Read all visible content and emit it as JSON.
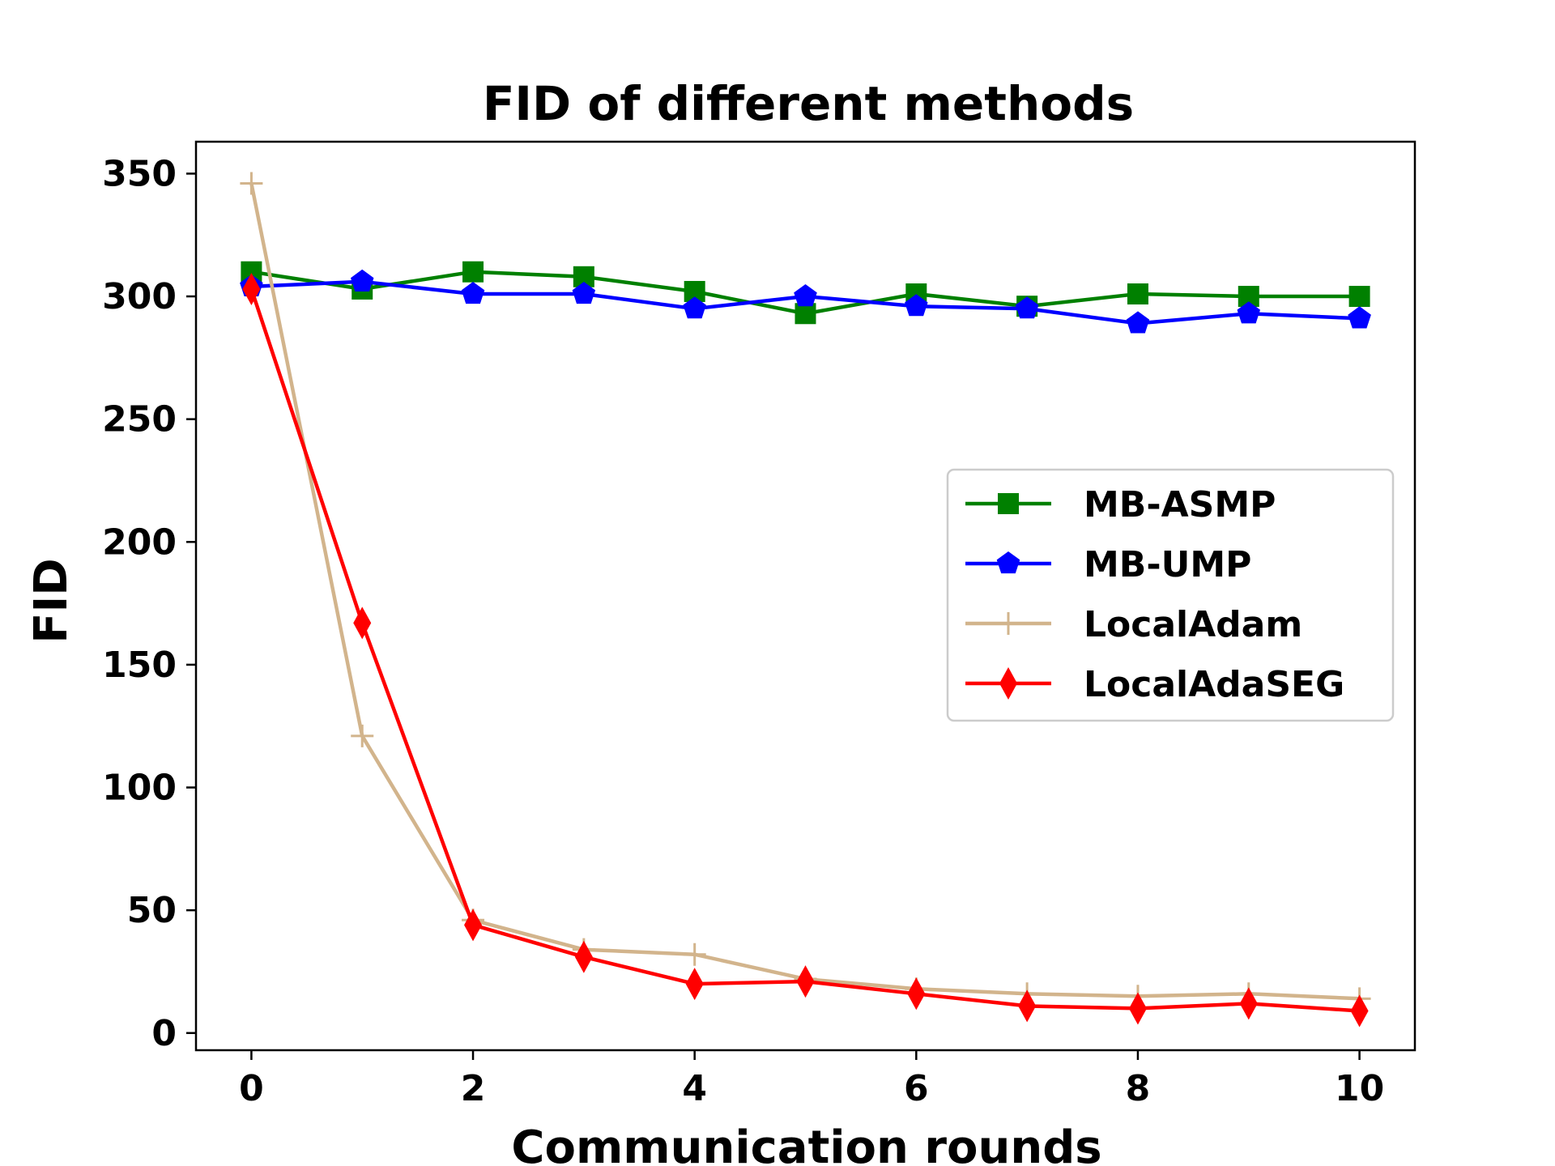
{
  "chart_data": {
    "type": "line",
    "title": "FID of different methods",
    "xlabel": "Communication rounds",
    "ylabel": "FID",
    "xlim": [
      -0.5,
      10.5
    ],
    "ylim": [
      -7,
      363
    ],
    "xticks": [
      0,
      2,
      4,
      6,
      8,
      10
    ],
    "yticks": [
      0,
      50,
      100,
      150,
      200,
      250,
      300,
      350
    ],
    "legend_position": "center-right",
    "grid": false,
    "x": [
      0,
      1,
      2,
      3,
      4,
      5,
      6,
      7,
      8,
      9,
      10
    ],
    "series": [
      {
        "name": "MB-ASMP",
        "color": "#008000",
        "marker": "square",
        "values": [
          310,
          303,
          310,
          308,
          302,
          293,
          301,
          296,
          301,
          300,
          300
        ]
      },
      {
        "name": "MB-UMP",
        "color": "#0000ff",
        "marker": "pentagon",
        "values": [
          304,
          306,
          301,
          301,
          295,
          300,
          296,
          295,
          289,
          293,
          291
        ]
      },
      {
        "name": "LocalAdam",
        "color": "#d2b48c",
        "marker": "plus",
        "values": [
          346,
          121,
          46,
          34,
          32,
          22,
          18,
          16,
          15,
          16,
          14
        ]
      },
      {
        "name": "LocalAdaSEG",
        "color": "#ff0000",
        "marker": "diamond",
        "values": [
          303,
          167,
          44,
          31,
          20,
          21,
          16,
          11,
          10,
          12,
          9
        ]
      }
    ]
  }
}
